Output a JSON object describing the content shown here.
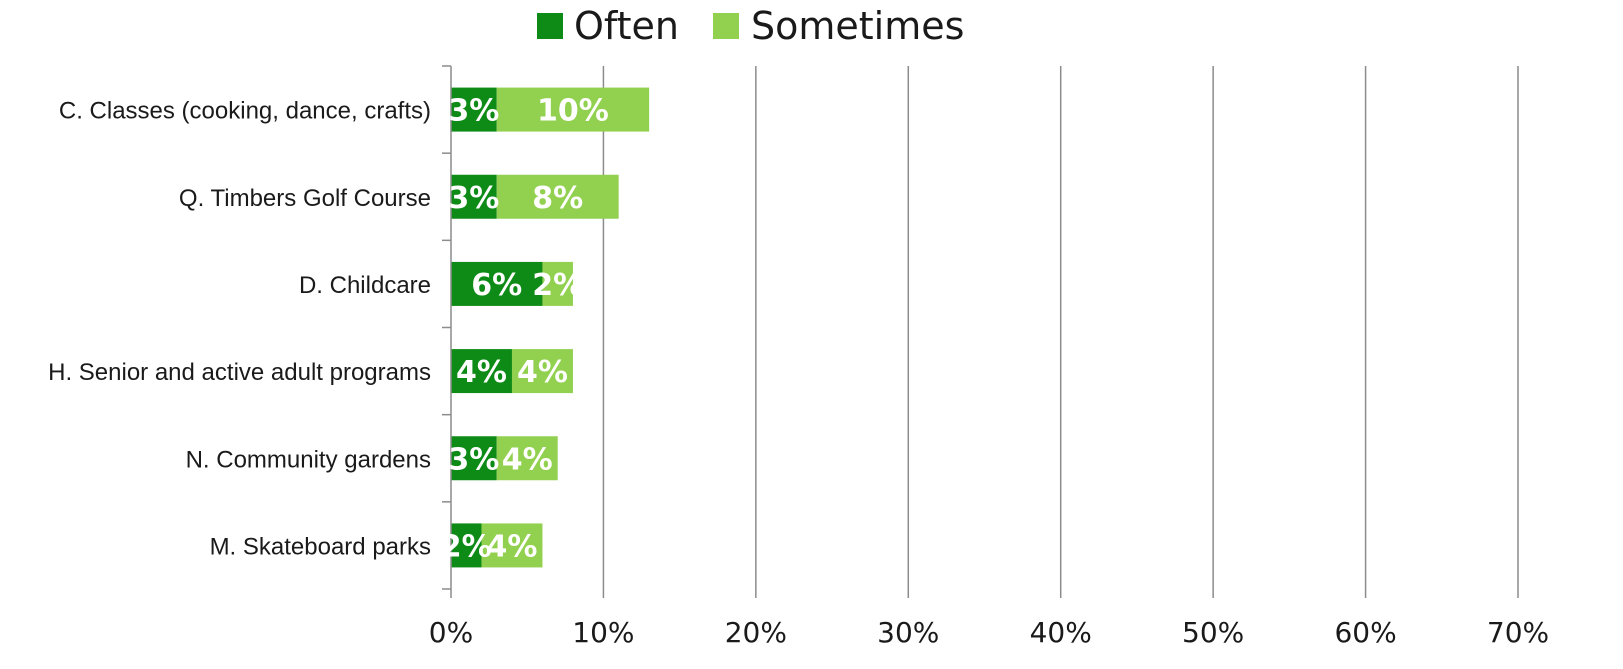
{
  "chart_data": {
    "type": "bar",
    "orientation": "horizontal",
    "stacked": true,
    "title": "",
    "xlabel": "",
    "ylabel": "",
    "categories": [
      "C. Classes (cooking, dance, crafts)",
      "Q. Timbers Golf Course",
      "D. Childcare",
      "H. Senior and active adult programs",
      "N. Community gardens",
      "M. Skateboard parks"
    ],
    "series": [
      {
        "name": "Often",
        "color": "#0e8a16",
        "values": [
          3,
          3,
          6,
          4,
          3,
          2
        ],
        "labels": [
          "3%",
          "3%",
          "6%",
          "4%",
          "3%",
          "2%"
        ]
      },
      {
        "name": "Sometimes",
        "color": "#92d050",
        "values": [
          10,
          8,
          2,
          4,
          4,
          4
        ],
        "labels": [
          "10%",
          "8%",
          "2%",
          "4%",
          "4%",
          "4%"
        ]
      }
    ],
    "xlim": [
      0,
      70
    ],
    "xticks": [
      0,
      10,
      20,
      30,
      40,
      50,
      60,
      70
    ],
    "xtick_labels": [
      "0%",
      "10%",
      "20%",
      "30%",
      "40%",
      "50%",
      "60%",
      "70%"
    ],
    "grid": "vertical",
    "legend": "top-center"
  }
}
